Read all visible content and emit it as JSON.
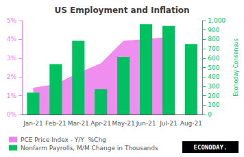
{
  "chart_data": {
    "type": "bar",
    "title": "US Employment and Inflation",
    "categories": [
      "Jan-21",
      "Feb-21",
      "Mar-21",
      "Apr-21",
      "May-21",
      "Jun-21",
      "Jul-21",
      "Aug-21"
    ],
    "series": [
      {
        "name": "PCE Price Index - Y/Y  %Chg",
        "type": "area",
        "color": "#ee82ee",
        "axis": "y",
        "values": [
          0.014,
          0.016,
          0.022,
          0.027,
          0.039,
          0.04,
          0.041,
          null
        ]
      },
      {
        "name": "Nonfarm Payrolls, M/M Change in Thousands",
        "type": "bar",
        "color": "#00c060",
        "axis": "y2",
        "values": [
          233,
          536,
          785,
          269,
          614,
          962,
          943,
          750
        ]
      }
    ],
    "ylim": [
      0,
      0.05
    ],
    "yticks": [
      {
        "value": 0,
        "label": "0%"
      },
      {
        "value": 0.01,
        "label": "1%"
      },
      {
        "value": 0.02,
        "label": "2%"
      },
      {
        "value": 0.03,
        "label": "3%"
      },
      {
        "value": 0.04,
        "label": "4%"
      },
      {
        "value": 0.05,
        "label": "5%"
      }
    ],
    "y2lim": [
      0,
      1000
    ],
    "y2ticks": [
      0,
      100,
      200,
      300,
      400,
      500,
      600,
      700,
      800,
      900,
      {
        "value": 1000,
        "label": "1,000"
      }
    ],
    "y2label": "Econoday Consensus",
    "annotations": [
      "ECONODAY."
    ],
    "grid": false,
    "legend": "lower left"
  }
}
